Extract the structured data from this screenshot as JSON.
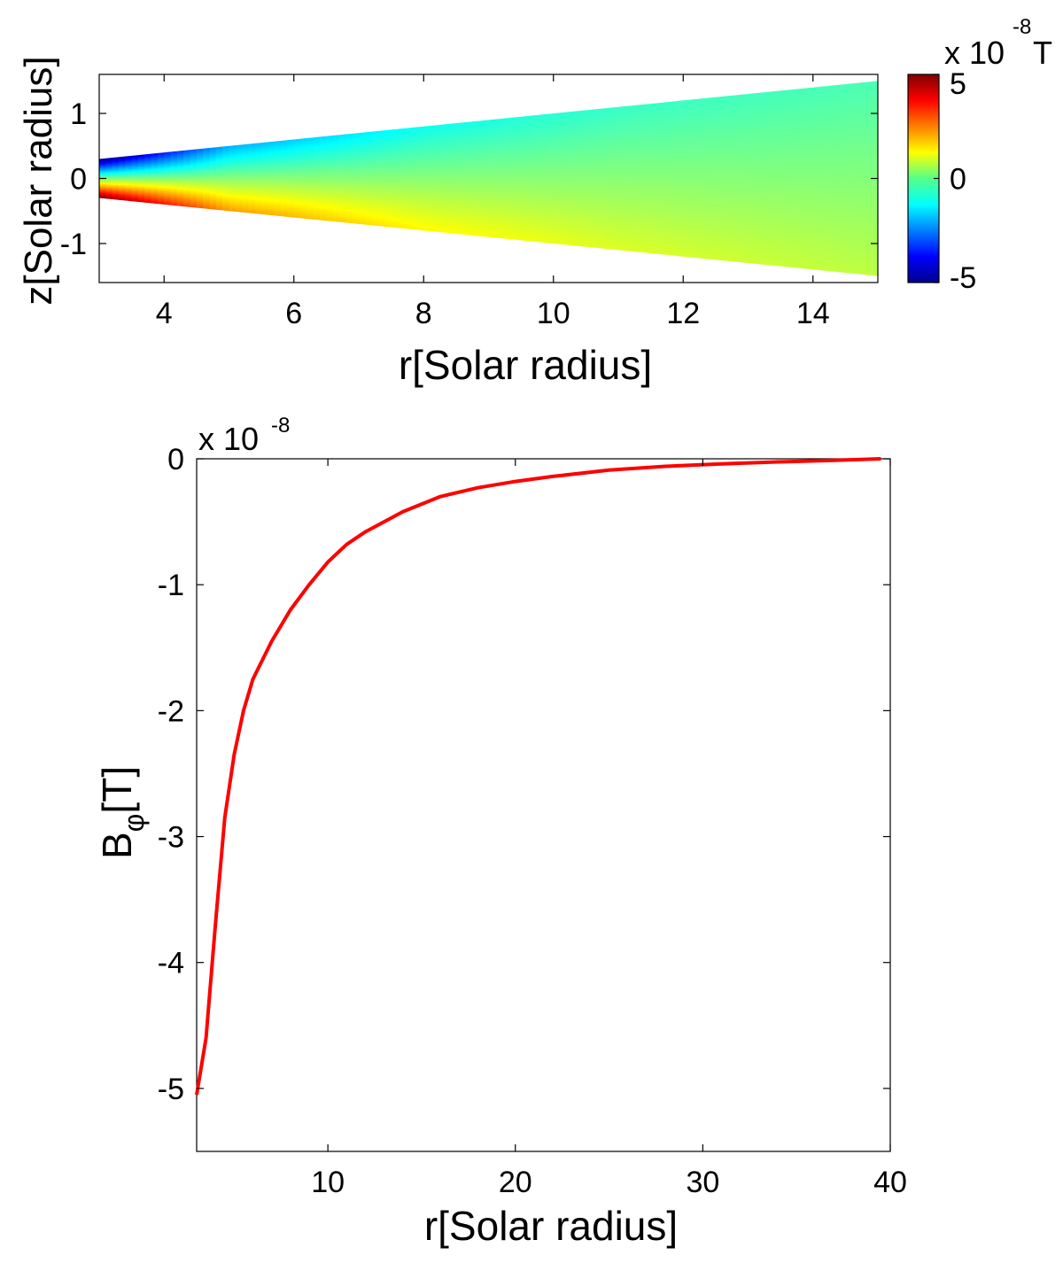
{
  "chart_data": [
    {
      "type": "heatmap",
      "title": "",
      "xlabel": "r[Solar radius]",
      "ylabel": "z[Solar radius]",
      "xlim": [
        3,
        15
      ],
      "ylim": [
        -1.6,
        1.6
      ],
      "xticks": [
        4,
        6,
        8,
        10,
        12,
        14
      ],
      "yticks": [
        -1,
        0,
        1
      ],
      "region": {
        "shape": "wedge",
        "r_range": [
          3,
          15
        ],
        "z_half_width_at_r_min": 0.3,
        "z_half_width_at_r_max": 1.5
      },
      "colorbar": {
        "colormap": "jet",
        "range": [
          -5,
          5
        ],
        "ticks": [
          -5,
          0,
          5
        ],
        "multiplier_label": "x 10",
        "exponent": "-8",
        "unit": "T"
      },
      "field_samples": [
        {
          "r": 3.0,
          "z_top_value": -5.0,
          "z_bottom_value": 5.0
        },
        {
          "r": 5.0,
          "z_top_value": -2.0,
          "z_bottom_value": 2.2
        },
        {
          "r": 8.0,
          "z_top_value": -1.1,
          "z_bottom_value": 1.3
        },
        {
          "r": 11.0,
          "z_top_value": -0.7,
          "z_bottom_value": 0.9
        },
        {
          "r": 15.0,
          "z_top_value": -0.5,
          "z_bottom_value": 0.6
        }
      ]
    },
    {
      "type": "line",
      "title": "",
      "xlabel": "r[Solar radius]",
      "ylabel_main": "B",
      "ylabel_sub": "φ",
      "ylabel_unit": "[T]",
      "xlim": [
        3,
        40
      ],
      "ylim": [
        -5.5,
        0
      ],
      "xticks": [
        10,
        20,
        30,
        40
      ],
      "yticks": [
        -5,
        -4,
        -3,
        -2,
        -1,
        0
      ],
      "ymultiplier_label": "x 10",
      "ymultiplier_exponent": "-8",
      "series": [
        {
          "color": "#ff0000",
          "x": [
            3.0,
            3.5,
            4.0,
            4.5,
            5.0,
            5.5,
            6.0,
            7.0,
            8.0,
            9.0,
            10.0,
            11.0,
            12.0,
            14.0,
            16.0,
            18.0,
            20.0,
            22.0,
            25.0,
            28.0,
            31.0,
            34.0,
            37.0,
            39.5
          ],
          "y": [
            -5.05,
            -4.6,
            -3.7,
            -2.85,
            -2.35,
            -2.0,
            -1.75,
            -1.45,
            -1.2,
            -1.0,
            -0.82,
            -0.68,
            -0.58,
            -0.42,
            -0.3,
            -0.23,
            -0.18,
            -0.14,
            -0.09,
            -0.06,
            -0.04,
            -0.025,
            -0.012,
            0.0
          ]
        }
      ]
    }
  ]
}
